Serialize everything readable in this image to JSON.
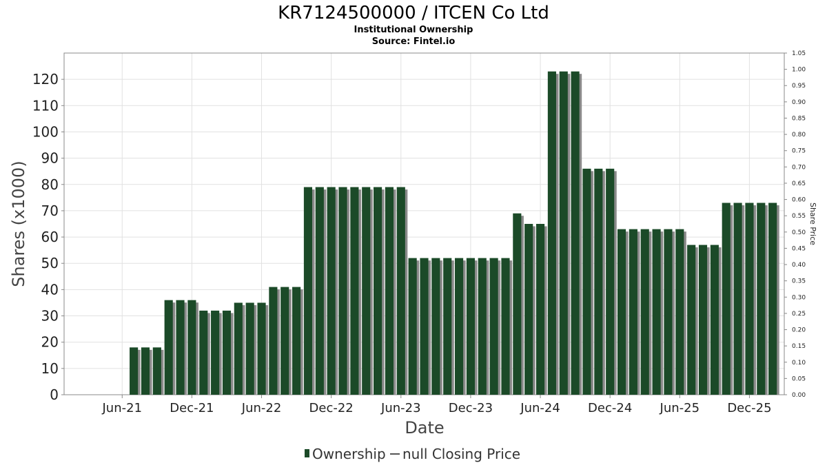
{
  "chart_data": {
    "type": "bar",
    "title": "KR7124500000 / ITCEN Co Ltd",
    "subtitle": "Institutional Ownership",
    "source": "Source: Fintel.io",
    "xlabel": "Date",
    "ylabel": "Shares (x1000)",
    "ylabel_right": "Share Price",
    "ylim": [
      0,
      130
    ],
    "ylim_right": [
      0,
      1.05
    ],
    "yticks": [
      0,
      10,
      20,
      30,
      40,
      50,
      60,
      70,
      80,
      90,
      100,
      110,
      120
    ],
    "yticks_right": [
      "0.00",
      "0.05",
      "0.10",
      "0.15",
      "0.20",
      "0.25",
      "0.30",
      "0.35",
      "0.40",
      "0.45",
      "0.50",
      "0.55",
      "0.60",
      "0.65",
      "0.70",
      "0.75",
      "0.80",
      "0.85",
      "0.90",
      "0.95",
      "1.00",
      "1.05"
    ],
    "xticks": [
      "Jun-21",
      "Dec-21",
      "Jun-22",
      "Dec-22",
      "Jun-23",
      "Dec-23",
      "Jun-24",
      "Dec-24",
      "Jun-25",
      "Dec-25"
    ],
    "x_start": "2021-01",
    "x_end": "2026-03",
    "grid": true,
    "legend_position": "bottom-center",
    "series": [
      {
        "name": "Ownership",
        "color": "#1b4a28",
        "points": [
          {
            "x": "2021-07",
            "y": 18
          },
          {
            "x": "2021-08",
            "y": 18
          },
          {
            "x": "2021-09",
            "y": 18
          },
          {
            "x": "2021-10",
            "y": 36
          },
          {
            "x": "2021-11",
            "y": 36
          },
          {
            "x": "2021-12",
            "y": 36
          },
          {
            "x": "2022-01",
            "y": 32
          },
          {
            "x": "2022-02",
            "y": 32
          },
          {
            "x": "2022-03",
            "y": 32
          },
          {
            "x": "2022-04",
            "y": 35
          },
          {
            "x": "2022-05",
            "y": 35
          },
          {
            "x": "2022-06",
            "y": 35
          },
          {
            "x": "2022-07",
            "y": 41
          },
          {
            "x": "2022-08",
            "y": 41
          },
          {
            "x": "2022-09",
            "y": 41
          },
          {
            "x": "2022-10",
            "y": 79
          },
          {
            "x": "2022-11",
            "y": 79
          },
          {
            "x": "2022-12",
            "y": 79
          },
          {
            "x": "2023-01",
            "y": 79
          },
          {
            "x": "2023-02",
            "y": 79
          },
          {
            "x": "2023-03",
            "y": 79
          },
          {
            "x": "2023-04",
            "y": 79
          },
          {
            "x": "2023-05",
            "y": 79
          },
          {
            "x": "2023-06",
            "y": 79
          },
          {
            "x": "2023-07",
            "y": 52
          },
          {
            "x": "2023-08",
            "y": 52
          },
          {
            "x": "2023-09",
            "y": 52
          },
          {
            "x": "2023-10",
            "y": 52
          },
          {
            "x": "2023-11",
            "y": 52
          },
          {
            "x": "2023-12",
            "y": 52
          },
          {
            "x": "2024-01",
            "y": 52
          },
          {
            "x": "2024-02",
            "y": 52
          },
          {
            "x": "2024-03",
            "y": 52
          },
          {
            "x": "2024-04",
            "y": 69
          },
          {
            "x": "2024-05",
            "y": 65
          },
          {
            "x": "2024-06",
            "y": 65
          },
          {
            "x": "2024-07",
            "y": 123
          },
          {
            "x": "2024-08",
            "y": 123
          },
          {
            "x": "2024-09",
            "y": 123
          },
          {
            "x": "2024-10",
            "y": 86
          },
          {
            "x": "2024-11",
            "y": 86
          },
          {
            "x": "2024-12",
            "y": 86
          },
          {
            "x": "2025-01",
            "y": 63
          },
          {
            "x": "2025-02",
            "y": 63
          },
          {
            "x": "2025-03",
            "y": 63
          },
          {
            "x": "2025-04",
            "y": 63
          },
          {
            "x": "2025-05",
            "y": 63
          },
          {
            "x": "2025-06",
            "y": 63
          },
          {
            "x": "2025-07",
            "y": 57
          },
          {
            "x": "2025-08",
            "y": 57
          },
          {
            "x": "2025-09",
            "y": 57
          },
          {
            "x": "2025-10",
            "y": 73
          },
          {
            "x": "2025-11",
            "y": 73
          },
          {
            "x": "2025-12",
            "y": 73
          },
          {
            "x": "2026-01",
            "y": 73
          },
          {
            "x": "2026-02",
            "y": 73
          }
        ]
      },
      {
        "name": "null Closing Price",
        "color": "#555555",
        "points": []
      }
    ]
  }
}
